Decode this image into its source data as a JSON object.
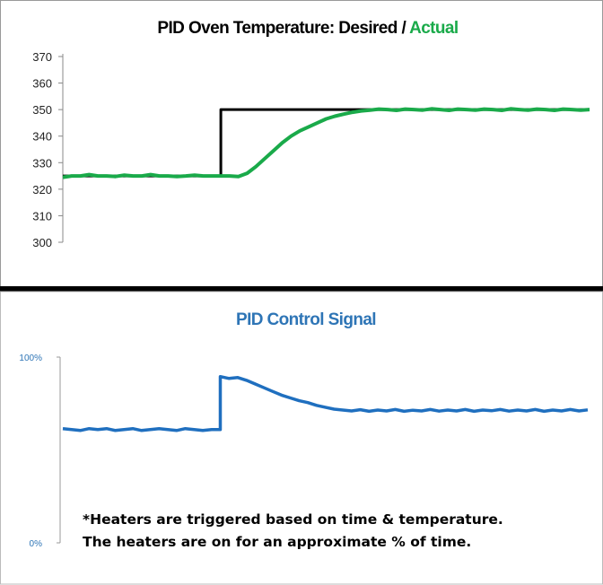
{
  "chart_data": [
    {
      "type": "line",
      "title": {
        "part1": "PID Oven Temperature:  Desired / ",
        "part2": "Actual"
      },
      "title_colors": {
        "part1": "#000000",
        "part2": "#1aaa4a"
      },
      "ylim": [
        300,
        370
      ],
      "yticks": [
        300,
        310,
        320,
        330,
        340,
        350,
        360,
        370
      ],
      "xlim": [
        0,
        60
      ],
      "grid": false,
      "legend": "none",
      "series": [
        {
          "color": "#000000",
          "x": [
            0,
            18,
            18,
            60
          ],
          "y": [
            325,
            325,
            350,
            350
          ]
        },
        {
          "color": "#1aaa4a",
          "x": "index",
          "y": [
            324.5,
            325,
            325,
            325.5,
            325,
            325,
            324.8,
            325.3,
            325,
            325,
            325.5,
            325,
            325,
            324.8,
            325,
            325.3,
            325,
            325,
            325,
            325,
            324.8,
            326,
            328.5,
            331.5,
            334.5,
            337.5,
            340,
            342,
            343.5,
            345,
            346.5,
            347.5,
            348.3,
            349,
            349.5,
            349.8,
            350.2,
            350,
            349.7,
            350.2,
            350,
            349.8,
            350.3,
            350,
            349.7,
            350.2,
            350,
            349.8,
            350.2,
            350,
            349.7,
            350.3,
            350,
            349.8,
            350.2,
            350,
            349.7,
            350.2,
            350,
            349.8,
            350
          ]
        }
      ]
    },
    {
      "type": "line",
      "title": "PID Control Signal",
      "title_color": "#2e75b6",
      "ylim": [
        0,
        100
      ],
      "yticks": [
        "0%",
        "100%"
      ],
      "xlim": [
        0,
        60
      ],
      "grid": false,
      "legend": "none",
      "series": [
        {
          "color": "#1f6fbf",
          "x": "index",
          "y": [
            61.5,
            61,
            60.5,
            61.5,
            61,
            61.5,
            60.5,
            61,
            61.5,
            60.5,
            61,
            61.5,
            61,
            60.5,
            61.5,
            61,
            60.5,
            61,
            89.5,
            88.5,
            89,
            87.5,
            85.5,
            83.5,
            81.5,
            79.5,
            78,
            76.5,
            75.5,
            74,
            73,
            72,
            71.5,
            71,
            71.7,
            70.8,
            71.5,
            71,
            71.8,
            70.8,
            71.4,
            71,
            71.8,
            70.9,
            71.5,
            71,
            71.8,
            70.8,
            71.5,
            71.1,
            71.8,
            70.9,
            71.5,
            71,
            71.8,
            70.8,
            71.5,
            71,
            71.8,
            71,
            71.6
          ]
        }
      ],
      "annotation": {
        "line1": "*Heaters are triggered based on time & temperature.",
        "line2": "The heaters are on for an approximate % of time."
      }
    }
  ]
}
